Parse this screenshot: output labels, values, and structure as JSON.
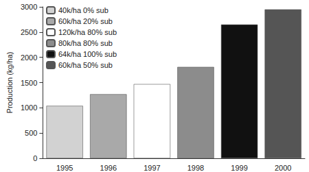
{
  "chart_data": {
    "type": "bar",
    "categories": [
      "1995",
      "1996",
      "1997",
      "1998",
      "1999",
      "2000"
    ],
    "series": [
      {
        "name": "40k/ha 0% sub",
        "color": "#d2d2d2",
        "values": [
          1040,
          null,
          null,
          null,
          null,
          null
        ]
      },
      {
        "name": "60k/ha 20% sub",
        "color": "#a9a9a9",
        "values": [
          null,
          1270,
          null,
          null,
          null,
          null
        ]
      },
      {
        "name": "120k/ha 80% sub",
        "color": "#ffffff",
        "values": [
          null,
          null,
          1470,
          null,
          null,
          null
        ]
      },
      {
        "name": "80k/ha 80% sub",
        "color": "#8c8c8c",
        "values": [
          null,
          null,
          null,
          1810,
          null,
          null
        ]
      },
      {
        "name": "64k/ha 100% sub",
        "color": "#111111",
        "values": [
          null,
          null,
          null,
          null,
          2650,
          null
        ]
      },
      {
        "name": "60k/ha 50% sub",
        "color": "#555555",
        "values": [
          null,
          null,
          null,
          null,
          null,
          2950
        ]
      }
    ],
    "ylabel": "Production (kg/ha)",
    "ylim": [
      0,
      3000
    ],
    "yticks": [
      0,
      500,
      1000,
      1500,
      2000,
      2500,
      3000
    ],
    "grid": false,
    "legend": "upper left"
  }
}
